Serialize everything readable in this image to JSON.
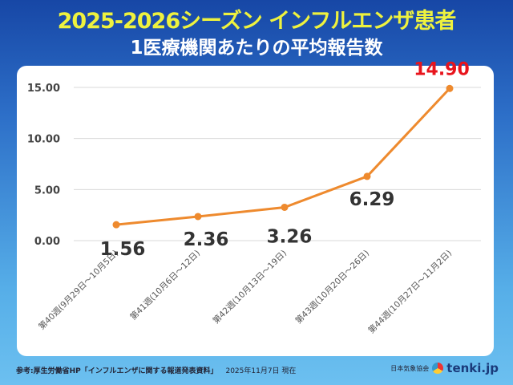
{
  "header": {
    "title": "2025-2026シーズン インフルエンザ患者",
    "subtitle": "1医療機関あたりの平均報告数"
  },
  "chart_data": {
    "type": "line",
    "title": "2025-2026シーズン インフルエンザ患者 1医療機関あたりの平均報告数",
    "categories": [
      "第40週(9月29日～10月5日)",
      "第41週(10月6日～12日)",
      "第42週(10月13日～19日)",
      "第43週(10月20日～26日)",
      "第44週(10月27日～11月2日)"
    ],
    "values": [
      1.56,
      2.36,
      3.26,
      6.29,
      14.9
    ],
    "data_labels": [
      "1.56",
      "2.36",
      "3.26",
      "6.29",
      "14.90"
    ],
    "yticks": [
      "0.00",
      "5.00",
      "10.00",
      "15.00"
    ],
    "ylim": [
      0,
      15
    ],
    "grid": true,
    "colors": {
      "line": "#ee8a2e",
      "label": "#333333",
      "highlight": "#e8141c"
    }
  },
  "footer": {
    "source": "参考:厚生労働省HP「インフルエンザに関する報道発表資料」",
    "date": "2025年11月7日 現在",
    "org": "日本気象協会",
    "logo": "tenki.jp"
  }
}
